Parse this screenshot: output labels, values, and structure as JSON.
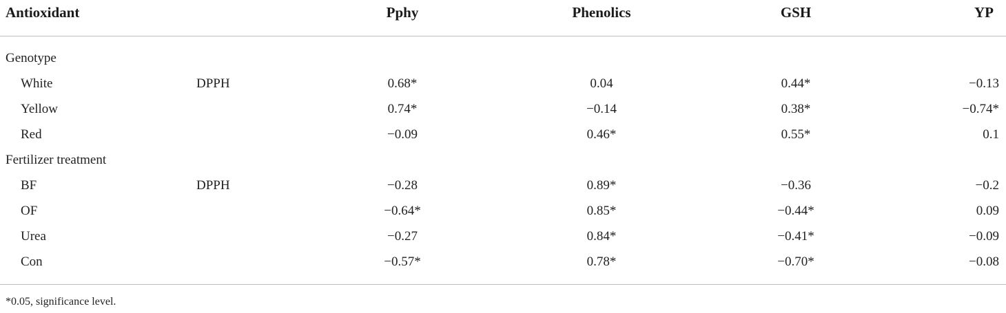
{
  "table": {
    "header": [
      "Antioxidant",
      "Pphy",
      "Phenolics",
      "GSH",
      "YP"
    ],
    "groups": [
      {
        "label": "Genotype",
        "rows": [
          {
            "name": "White",
            "assay": "DPPH",
            "values": [
              "0.68*",
              "0.04",
              "0.44*",
              "−0.13"
            ]
          },
          {
            "name": "Yellow",
            "values": [
              "0.74*",
              "−0.14",
              "0.38*",
              "−0.74*"
            ]
          },
          {
            "name": "Red",
            "values": [
              "−0.09",
              "0.46*",
              "0.55*",
              "0.1"
            ]
          }
        ]
      },
      {
        "label": "Fertilizer treatment",
        "rows": [
          {
            "name": "BF",
            "assay": "DPPH",
            "values": [
              "−0.28",
              "0.89*",
              "−0.36",
              "−0.2"
            ]
          },
          {
            "name": "OF",
            "values": [
              "−0.64*",
              "0.85*",
              "−0.44*",
              "0.09"
            ]
          },
          {
            "name": "Urea",
            "values": [
              "−0.27",
              "0.84*",
              "−0.41*",
              "−0.09"
            ]
          },
          {
            "name": "Con",
            "values": [
              "−0.57*",
              "0.78*",
              "−0.70*",
              "−0.08"
            ]
          }
        ]
      }
    ],
    "footnote": "*0.05, significance level."
  }
}
